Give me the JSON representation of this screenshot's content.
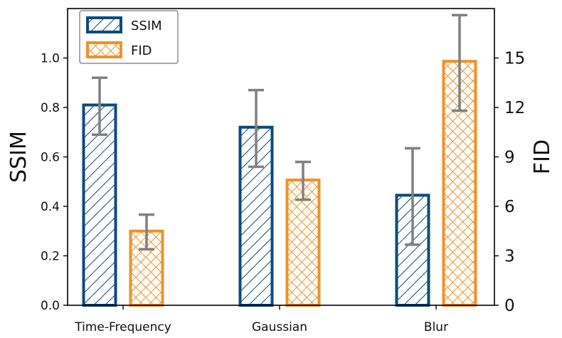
{
  "chart_data": {
    "type": "bar",
    "categories": [
      "Time-Frequency",
      "Gaussian",
      "Blur"
    ],
    "series": [
      {
        "name": "SSIM",
        "axis": "left",
        "values": [
          0.81,
          0.72,
          0.445
        ],
        "error_low": [
          0.69,
          0.56,
          0.245
        ],
        "error_high": [
          0.92,
          0.87,
          0.635
        ],
        "color": "#0d4a7c",
        "pattern": "diagonal-hatch"
      },
      {
        "name": "FID",
        "axis": "right",
        "values": [
          4.5,
          7.6,
          14.8
        ],
        "error_low": [
          3.4,
          6.4,
          11.8
        ],
        "error_high": [
          5.5,
          8.7,
          17.6
        ],
        "color": "#f0912a",
        "pattern": "cross-hatch"
      }
    ],
    "error_bar_color": "#808080",
    "ylabel_left": "SSIM",
    "ylabel_right": "FID",
    "ylim_left": [
      0,
      1.2
    ],
    "yticks_left": [
      "0.0",
      "0.2",
      "0.4",
      "0.6",
      "0.8",
      "1.0"
    ],
    "ylim_right": [
      0,
      18
    ],
    "yticks_right": [
      "0",
      "3",
      "6",
      "9",
      "12",
      "15"
    ],
    "legend": {
      "placement": "top-left",
      "entries": [
        "SSIM",
        "FID"
      ]
    },
    "grid": false
  }
}
